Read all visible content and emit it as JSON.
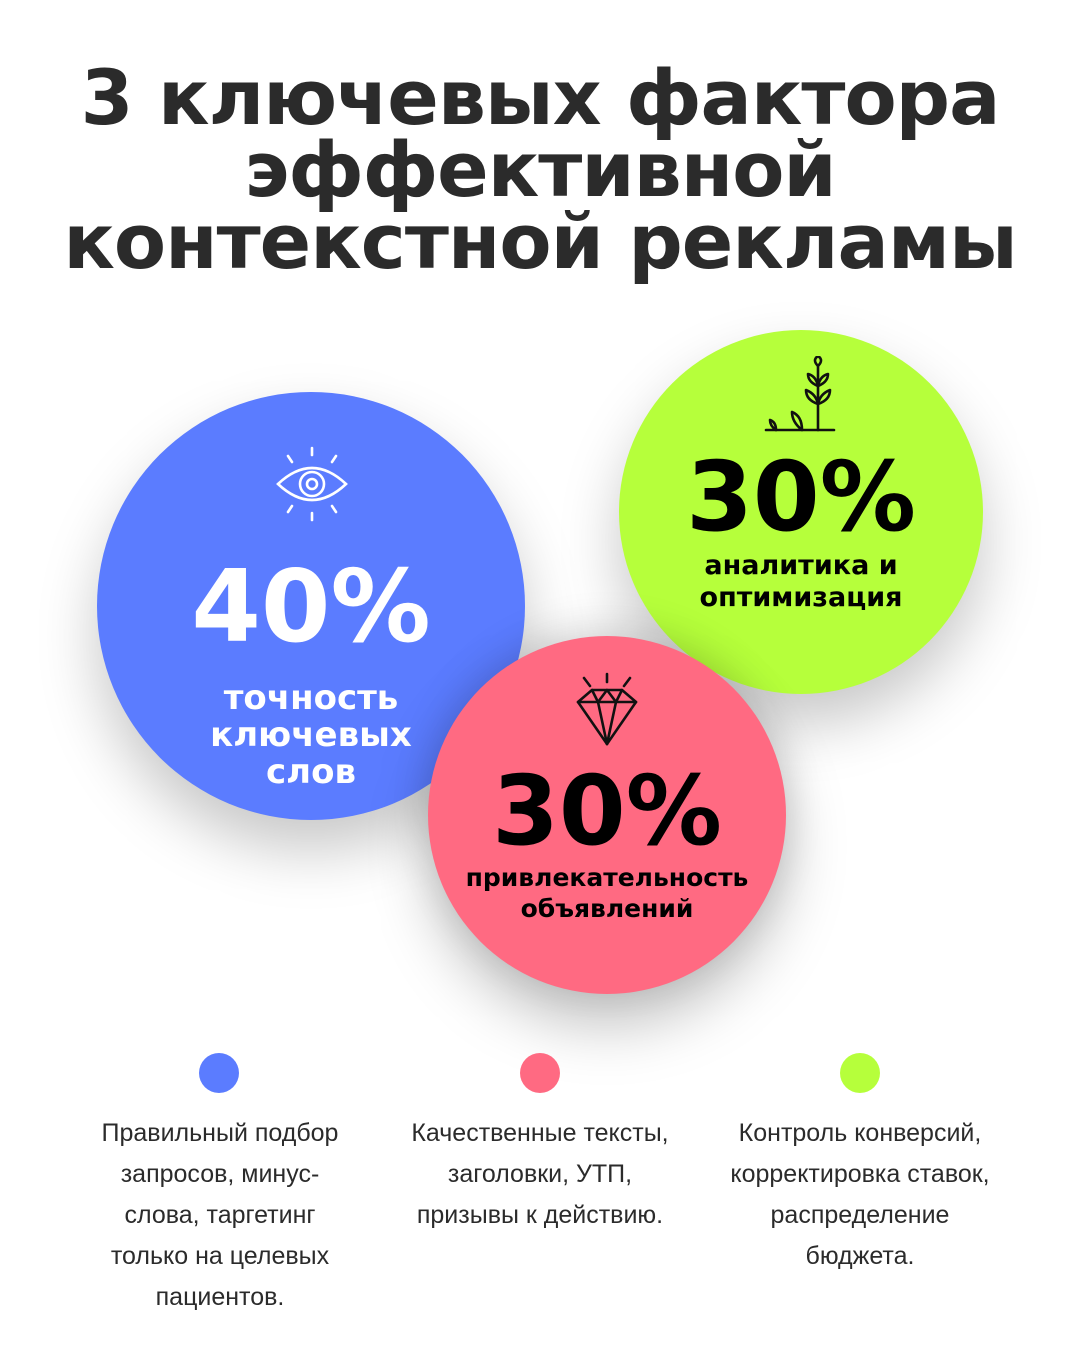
{
  "title": {
    "lines": [
      "3 ключевых фактора",
      "эффективной",
      "контекстной рекламы"
    ]
  },
  "chart_data": {
    "type": "bubble",
    "title": "3 ключевых фактора эффективной контекстной рекламы",
    "unit": "%",
    "items": [
      {
        "value": 40,
        "display": "40%",
        "label_lines": [
          "точность",
          "ключевых",
          "слов"
        ],
        "color": "#5b7cff",
        "text_color": "#ffffff",
        "icon": "eye-icon",
        "description_lines": [
          "Правильный подбор",
          "запросов, минус-",
          "слова, таргетинг",
          "только на целевых",
          "пациентов."
        ]
      },
      {
        "value": 30,
        "display": "30%",
        "label_lines": [
          "привлекательность",
          "объявлений"
        ],
        "color": "#ff6a82",
        "text_color": "#000000",
        "icon": "diamond-icon",
        "description_lines": [
          "Качественные тексты,",
          "заголовки, УТП,",
          "призывы к действию."
        ]
      },
      {
        "value": 30,
        "display": "30%",
        "label_lines": [
          "аналитика и",
          "оптимизация"
        ],
        "color": "#b6ff3b",
        "text_color": "#000000",
        "icon": "sprout-icon",
        "description_lines": [
          "Контроль конверсий,",
          "корректировка ставок,",
          "распределение",
          "бюджета."
        ]
      }
    ]
  }
}
